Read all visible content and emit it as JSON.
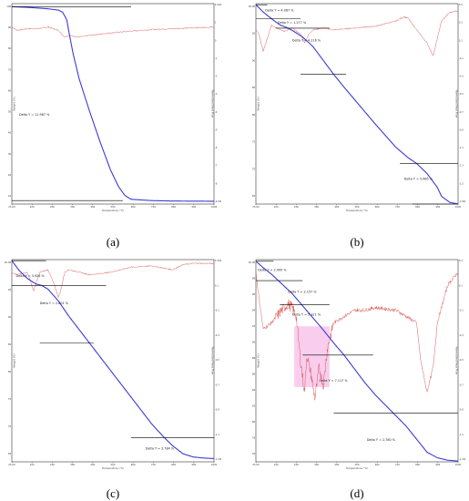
{
  "figure": {
    "panel_labels": [
      "(a)",
      "(b)",
      "(c)",
      "(d)"
    ]
  },
  "colors": {
    "tga": "#3b3bd6",
    "dsc": "#d94a4a",
    "frame": "#333333",
    "step": "#000000",
    "grid_text": "#444444",
    "shade": "#f5b8e6"
  },
  "chart_data": [
    {
      "type": "line",
      "panel": "a",
      "xlabel": "Temperature (°C)",
      "ylabel": "Weight (%)",
      "y2label": "Normalized Heat Flow",
      "xlim": [
        25,
        1000
      ],
      "ylim": [
        8,
        101
      ],
      "y2lim": [
        -9,
        3
      ],
      "x_ticks": [
        "25.00",
        "100",
        "200",
        "300",
        "400",
        "500",
        "600",
        "700",
        "800",
        "900",
        "1000"
      ],
      "y_ticks": [
        "100",
        "90",
        "80",
        "70",
        "60",
        "50",
        "40",
        "30",
        "20",
        "10"
      ],
      "y2_ticks": [
        "2.000",
        "1",
        "0",
        "-1",
        "-2",
        "-3",
        "-4",
        "-5",
        "-6",
        "-7",
        "-8",
        "-9.000"
      ],
      "series": [
        {
          "role": "tga",
          "x": [
            25,
            100,
            200,
            250,
            270,
            290,
            300,
            320,
            350,
            400,
            450,
            500,
            540,
            570,
            600,
            700,
            800,
            1000
          ],
          "y": [
            99.6,
            99.3,
            98.6,
            98,
            97,
            93.5,
            88,
            78,
            66,
            51,
            37,
            24,
            16,
            12,
            10.2,
            9.6,
            9.4,
            9.3
          ]
        },
        {
          "role": "dsc",
          "x": [
            25,
            50,
            100,
            150,
            200,
            250,
            265,
            280,
            300,
            350,
            400,
            500,
            600,
            700,
            800,
            900,
            1000
          ],
          "y": [
            1.6,
            1.4,
            1.5,
            1.5,
            1.6,
            1.4,
            1.2,
            1.0,
            1.1,
            1.0,
            1.1,
            1.25,
            1.35,
            1.45,
            1.5,
            1.55,
            1.6
          ]
        }
      ],
      "steps": [
        {
          "y": 99.6,
          "x1": 25,
          "x2": 600
        },
        {
          "y": 9.6,
          "x1": 25,
          "x2": 560
        }
      ],
      "annotations": [
        {
          "text": "Delta Y = 11.987 %",
          "x": 60,
          "y": 49
        }
      ]
    },
    {
      "type": "line",
      "panel": "b",
      "xlabel": "Temperature (°C)",
      "ylabel": "Weight (%)",
      "y2label": "Normalized Heat Flow",
      "xlim": [
        25,
        1000
      ],
      "ylim": [
        64,
        100
      ],
      "y2lim": [
        -1.8,
        0.5
      ],
      "x_ticks": [
        "25.00",
        "100",
        "200",
        "300",
        "400",
        "500",
        "600",
        "700",
        "800",
        "900",
        "1000"
      ],
      "y_ticks": [
        "100.00",
        "95",
        "90",
        "85",
        "80",
        "75",
        "70",
        "65"
      ],
      "y2_ticks": [
        "0.5",
        "0.3",
        "0.1",
        "-0.1",
        "-0.3",
        "-0.5",
        "-0.7",
        "-0.9",
        "-1.1",
        "-1.3",
        "-1.5",
        "-1.800"
      ],
      "series": [
        {
          "role": "tga",
          "x": [
            25,
            60,
            100,
            140,
            180,
            200,
            250,
            300,
            350,
            400,
            450,
            500,
            550,
            600,
            650,
            700,
            760,
            800,
            850,
            900,
            920,
            960,
            1000
          ],
          "y": [
            99.8,
            98.5,
            97.3,
            96.2,
            95.6,
            95.2,
            94,
            92.3,
            89.8,
            87.3,
            85,
            82.8,
            80.6,
            78.4,
            76.3,
            74.2,
            72.3,
            71.3,
            69.5,
            67,
            65.4,
            64.3,
            64.0
          ]
        },
        {
          "role": "dsc",
          "x": [
            25,
            40,
            60,
            80,
            100,
            130,
            160,
            200,
            240,
            260,
            280,
            300,
            350,
            400,
            500,
            600,
            700,
            740,
            760,
            800,
            850,
            880,
            900,
            920,
            960,
            1000
          ],
          "y": [
            0.2,
            0.15,
            -0.05,
            0.1,
            0.25,
            0.22,
            0.18,
            0.22,
            0.15,
            0.05,
            0.15,
            0.2,
            0.22,
            0.2,
            0.22,
            0.24,
            0.3,
            0.35,
            0.33,
            0.2,
            0.05,
            -0.1,
            0.1,
            0.3,
            0.4,
            0.42
          ]
        }
      ],
      "steps": [
        {
          "y": 99.8,
          "x1": 25,
          "x2": 80
        },
        {
          "y": 97.3,
          "x1": 25,
          "x2": 240
        },
        {
          "y": 95.6,
          "x1": 120,
          "x2": 380
        },
        {
          "y": 87.3,
          "x1": 240,
          "x2": 460
        },
        {
          "y": 71.3,
          "x1": 720,
          "x2": 1000
        },
        {
          "y": 64.0,
          "x1": 780,
          "x2": 1000
        }
      ],
      "annotations": [
        {
          "text": "Delta Y = 4.067 %",
          "x": 70,
          "y": 98.6
        },
        {
          "text": "Delta Y = 1.277 %",
          "x": 130,
          "y": 96.4
        },
        {
          "text": "Delta Y = 4.216 %",
          "x": 200,
          "y": 93.2
        },
        {
          "text": "Delta Y = 5.485 %",
          "x": 740,
          "y": 68.3
        }
      ]
    },
    {
      "type": "line",
      "panel": "c",
      "xlabel": "Temperature (°C)",
      "ylabel": "Weight (%)",
      "y2label": "Normalized Heat Flow",
      "xlim": [
        25,
        1000
      ],
      "ylim": [
        62.5,
        100
      ],
      "y2lim": [
        -1.3,
        0.3
      ],
      "x_ticks": [
        "25.00",
        "100",
        "200",
        "300",
        "400",
        "500",
        "600",
        "700",
        "800",
        "900",
        "1000"
      ],
      "y_ticks": [
        "100.00",
        "95",
        "90",
        "85",
        "80",
        "75",
        "70",
        "65"
      ],
      "y2_ticks": [
        "0.300",
        "0.1",
        "-0.1",
        "-0.3",
        "-0.5",
        "-0.7",
        "-0.9",
        "-1.1",
        "-1.300"
      ],
      "series": [
        {
          "role": "tga",
          "x": [
            25,
            60,
            100,
            140,
            170,
            200,
            250,
            300,
            350,
            400,
            450,
            500,
            550,
            600,
            650,
            700,
            760,
            800,
            850,
            900,
            950,
            1000
          ],
          "y": [
            99.8,
            98,
            96.5,
            95.5,
            95.2,
            94.5,
            92.3,
            89.5,
            87,
            84.5,
            82,
            79.5,
            77,
            74.5,
            72,
            69.5,
            67,
            65.5,
            64,
            63.4,
            63.2,
            63.1
          ]
        },
        {
          "role": "dsc",
          "x": [
            25,
            50,
            100,
            130,
            160,
            200,
            230,
            250,
            260,
            280,
            300,
            350,
            400,
            500,
            600,
            700,
            800,
            850,
            900,
            1000
          ],
          "y": [
            0.2,
            0.18,
            0.2,
            0.05,
            0.2,
            0.22,
            0.1,
            0.0,
            0.05,
            0.2,
            0.22,
            0.2,
            0.18,
            0.2,
            0.24,
            0.25,
            0.22,
            0.26,
            0.27,
            0.27
          ]
        }
      ],
      "steps": [
        {
          "y": 99.8,
          "x1": 25,
          "x2": 190
        },
        {
          "y": 95.2,
          "x1": 25,
          "x2": 480
        },
        {
          "y": 84.5,
          "x1": 160,
          "x2": 420
        },
        {
          "y": 67.0,
          "x1": 600,
          "x2": 1000
        }
      ],
      "annotations": [
        {
          "text": "Delta Y = 3.926 %",
          "x": 45,
          "y": 96.8
        },
        {
          "text": "Delta Y = 2.801 %",
          "x": 160,
          "y": 91.7
        },
        {
          "text": "Delta Y = 3.784 %",
          "x": 670,
          "y": 64.8
        }
      ]
    },
    {
      "type": "line",
      "panel": "d",
      "xlabel": "Temperature (°C)",
      "ylabel": "Weight (%)",
      "y2label": "Normalized Heat Flow",
      "xlim": [
        25,
        1000
      ],
      "ylim": [
        75,
        100
      ],
      "y2lim": [
        -1.3,
        0.3
      ],
      "x_ticks": [
        "25.00",
        "100",
        "200",
        "300",
        "400",
        "500",
        "600",
        "700",
        "800",
        "900",
        "1000"
      ],
      "y_ticks": [
        "100.00",
        "98",
        "96",
        "94",
        "92",
        "90",
        "88",
        "86",
        "84",
        "82",
        "80",
        "78",
        "76"
      ],
      "y2_ticks": [
        "0.3",
        "0.1",
        "-0.1",
        "-0.3",
        "-0.5",
        "-0.7",
        "-0.9",
        "-1.1",
        "-1.300"
      ],
      "series": [
        {
          "role": "tga",
          "x": [
            25,
            60,
            100,
            150,
            200,
            250,
            300,
            350,
            400,
            450,
            500,
            550,
            600,
            650,
            700,
            750,
            800,
            850,
            900,
            950,
            1000
          ],
          "y": [
            99.8,
            99,
            98.2,
            97,
            95.8,
            94.3,
            92.8,
            91.3,
            89.7,
            88.2,
            86.5,
            84.8,
            83.3,
            82,
            80.7,
            79.4,
            77.8,
            76.2,
            75.5,
            75.2,
            75.1
          ]
        },
        {
          "role": "dsc",
          "x": [
            25,
            40,
            60,
            100,
            150,
            180,
            200,
            220,
            240,
            260,
            270,
            290,
            310,
            330,
            350,
            370,
            400,
            450,
            500,
            550,
            600,
            700,
            800,
            820,
            850,
            880,
            900,
            950,
            1000
          ],
          "y": [
            0.2,
            0.0,
            -0.25,
            -0.2,
            -0.1,
            -0.05,
            -0.08,
            -0.15,
            -0.5,
            -0.75,
            -0.45,
            -0.6,
            -0.8,
            -0.55,
            -0.7,
            -0.4,
            -0.2,
            -0.15,
            -0.1,
            -0.1,
            -0.08,
            -0.1,
            -0.2,
            -0.5,
            -0.75,
            -0.55,
            -0.2,
            0.1,
            0.2
          ]
        }
      ],
      "steps": [
        {
          "y": 99.8,
          "x1": 25,
          "x2": 110
        },
        {
          "y": 97.4,
          "x1": 25,
          "x2": 250
        },
        {
          "y": 94.4,
          "x1": 140,
          "x2": 380
        },
        {
          "y": 88.2,
          "x1": 250,
          "x2": 590
        },
        {
          "y": 81.0,
          "x1": 400,
          "x2": 1000
        }
      ],
      "shade_x": [
        210,
        380
      ],
      "annotations": [
        {
          "text": "Delta Y = 2.000 %",
          "x": 35,
          "y": 98.6
        },
        {
          "text": "Delta Y = 2.157 %",
          "x": 180,
          "y": 95.9
        },
        {
          "text": "Delta Y = 5.321 %",
          "x": 200,
          "y": 93.1
        },
        {
          "text": "Delta Y = 7.117 %",
          "x": 330,
          "y": 84.9
        },
        {
          "text": "Delta Y = 2.780 %",
          "x": 560,
          "y": 77.6
        }
      ]
    }
  ]
}
